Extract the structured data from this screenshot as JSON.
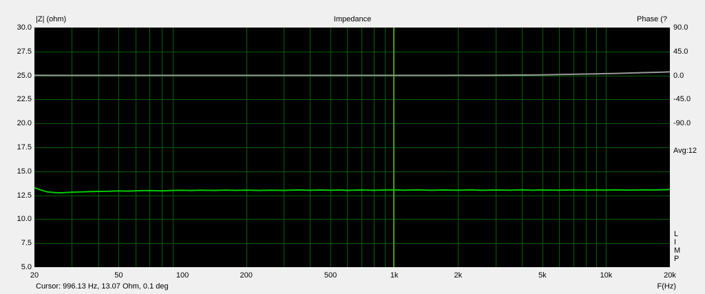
{
  "window": {
    "background": "#f0f0f0"
  },
  "header": {
    "left_axis_title": "|Z| (ohm)",
    "title": "Impedance",
    "right_axis_title": "Phase (?"
  },
  "status_bar": {
    "cursor_readout": "Cursor: 996.13 Hz, 13.07 Ohm, 0.1 deg"
  },
  "x_axis": {
    "unit_label": "F(Hz)"
  },
  "right_panel": {
    "avg_label": "Avg:12",
    "limp_letters": [
      "L",
      "I",
      "M",
      "P"
    ]
  },
  "chart_data": {
    "type": "line",
    "title": "Impedance",
    "x_scale": "log",
    "x_range": [
      20,
      20000
    ],
    "x_ticks": [
      {
        "v": 20,
        "label": "20"
      },
      {
        "v": 50,
        "label": "50"
      },
      {
        "v": 100,
        "label": "100"
      },
      {
        "v": 200,
        "label": "200"
      },
      {
        "v": 500,
        "label": "500"
      },
      {
        "v": 1000,
        "label": "1k"
      },
      {
        "v": 2000,
        "label": "2k"
      },
      {
        "v": 5000,
        "label": "5k"
      },
      {
        "v": 10000,
        "label": "10k"
      },
      {
        "v": 20000,
        "label": "20k"
      }
    ],
    "left_axis": {
      "title": "|Z| (ohm)",
      "range": [
        5,
        30
      ],
      "ticks": [
        {
          "v": 30,
          "label": "30.0"
        },
        {
          "v": 27.5,
          "label": "27.5"
        },
        {
          "v": 25,
          "label": "25.0"
        },
        {
          "v": 22.5,
          "label": "22.5"
        },
        {
          "v": 20,
          "label": "20.0"
        },
        {
          "v": 17.5,
          "label": "17.5"
        },
        {
          "v": 15,
          "label": "15.0"
        },
        {
          "v": 12.5,
          "label": "12.5"
        },
        {
          "v": 10,
          "label": "10.0"
        },
        {
          "v": 7.5,
          "label": "7.5"
        },
        {
          "v": 5,
          "label": "5.0"
        }
      ]
    },
    "right_axis": {
      "title": "Phase (deg)",
      "zero_deg_at_left_value": 25,
      "deg_per_left_unit": 18,
      "ticks": [
        {
          "v": 90,
          "label": "90.0"
        },
        {
          "v": 45,
          "label": "45.0"
        },
        {
          "v": 0,
          "label": "0.0"
        },
        {
          "v": -45,
          "label": "-45.0"
        },
        {
          "v": -90,
          "label": "-90.0"
        }
      ]
    },
    "grid": {
      "color": "#006000",
      "background": "#000000",
      "cursor_color": "#4f9a14"
    },
    "cursor": {
      "freq_hz": 996.13,
      "impedance_ohm": 13.07,
      "phase_deg": 0.1
    },
    "series": [
      {
        "name": "impedance_magnitude_ohm",
        "axis": "left",
        "color": "#00cc00",
        "width": 2,
        "points": [
          [
            20,
            13.3
          ],
          [
            21,
            13.12
          ],
          [
            22,
            12.98
          ],
          [
            23,
            12.86
          ],
          [
            25,
            12.78
          ],
          [
            27,
            12.76
          ],
          [
            29,
            12.8
          ],
          [
            32,
            12.84
          ],
          [
            36,
            12.88
          ],
          [
            40,
            12.9
          ],
          [
            45,
            12.92
          ],
          [
            50,
            12.95
          ],
          [
            55,
            12.93
          ],
          [
            60,
            12.97
          ],
          [
            70,
            12.99
          ],
          [
            80,
            12.96
          ],
          [
            90,
            13.0
          ],
          [
            100,
            13.02
          ],
          [
            110,
            12.99
          ],
          [
            120,
            13.03
          ],
          [
            140,
            13.0
          ],
          [
            160,
            13.04
          ],
          [
            180,
            13.01
          ],
          [
            200,
            13.04
          ],
          [
            230,
            13.0
          ],
          [
            260,
            13.03
          ],
          [
            300,
            13.01
          ],
          [
            350,
            13.05
          ],
          [
            400,
            13.02
          ],
          [
            450,
            13.05
          ],
          [
            500,
            13.02
          ],
          [
            550,
            13.05
          ],
          [
            600,
            13.01
          ],
          [
            700,
            13.05
          ],
          [
            800,
            13.02
          ],
          [
            900,
            13.05
          ],
          [
            1000,
            13.07
          ],
          [
            1100,
            13.03
          ],
          [
            1300,
            13.06
          ],
          [
            1500,
            13.02
          ],
          [
            1700,
            13.05
          ],
          [
            2000,
            13.03
          ],
          [
            2300,
            13.06
          ],
          [
            2600,
            13.02
          ],
          [
            3000,
            13.05
          ],
          [
            3500,
            13.03
          ],
          [
            4000,
            13.06
          ],
          [
            4500,
            13.03
          ],
          [
            5000,
            13.05
          ],
          [
            6000,
            13.03
          ],
          [
            7000,
            13.06
          ],
          [
            8000,
            13.04
          ],
          [
            9000,
            13.07
          ],
          [
            10000,
            13.04
          ],
          [
            11000,
            13.07
          ],
          [
            13000,
            13.04
          ],
          [
            15000,
            13.07
          ],
          [
            17000,
            13.05
          ],
          [
            19000,
            13.08
          ],
          [
            20000,
            13.1
          ]
        ]
      },
      {
        "name": "phase_deg",
        "axis": "right",
        "color": "#9a9a9a",
        "width": 2,
        "points": [
          [
            20,
            0.2
          ],
          [
            30,
            0.1
          ],
          [
            50,
            0.1
          ],
          [
            100,
            0.1
          ],
          [
            200,
            0.1
          ],
          [
            500,
            0.1
          ],
          [
            1000,
            0.1
          ],
          [
            1500,
            0.15
          ],
          [
            2000,
            0.2
          ],
          [
            2500,
            0.3
          ],
          [
            3000,
            0.45
          ],
          [
            3500,
            0.6
          ],
          [
            4000,
            0.8
          ],
          [
            5000,
            1.2
          ],
          [
            6000,
            1.7
          ],
          [
            7000,
            2.2
          ],
          [
            8000,
            2.7
          ],
          [
            9000,
            3.1
          ],
          [
            10000,
            3.5
          ],
          [
            12000,
            4.2
          ],
          [
            14000,
            4.9
          ],
          [
            16000,
            5.5
          ],
          [
            18000,
            6.1
          ],
          [
            20000,
            6.7
          ]
        ]
      }
    ]
  }
}
